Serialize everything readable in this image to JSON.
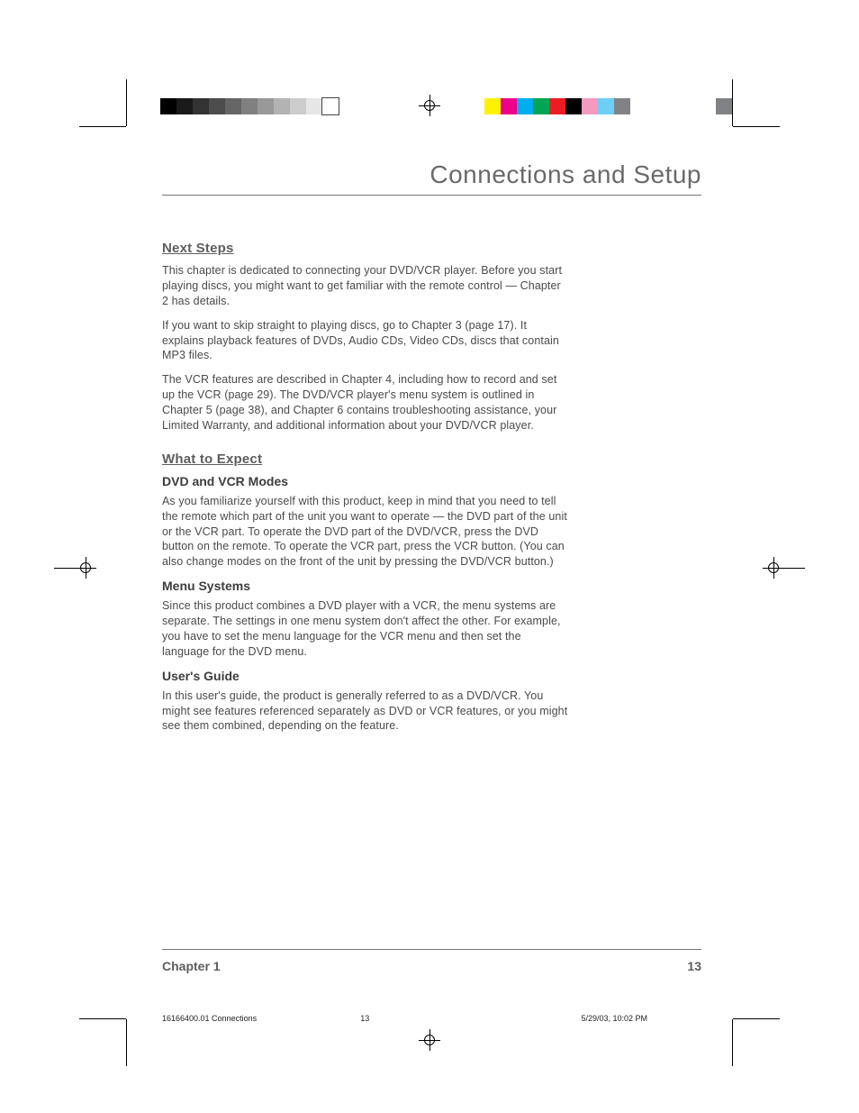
{
  "crop_marks": {
    "color": "#000000"
  },
  "registration_marks": {
    "positions": [
      "top",
      "bottom",
      "left",
      "right"
    ]
  },
  "color_bars": {
    "left_grayscale": [
      "#000000",
      "#1a1a1a",
      "#333333",
      "#4d4d4d",
      "#666666",
      "#808080",
      "#999999",
      "#b3b3b3",
      "#cccccc",
      "#e6e6e6",
      "#ffffff"
    ],
    "right_process": [
      "#fff200",
      "#ec008c",
      "#00aeef",
      "#00a651",
      "#ed1c24",
      "#000000",
      "#f49ac1",
      "#6dcff6",
      "#808285"
    ],
    "extra_swatch": "#808285"
  },
  "header": {
    "title": "Connections and Setup",
    "title_color": "#6a6a6a",
    "title_fontsize": 28,
    "rule_color": "#777777"
  },
  "sections": [
    {
      "heading": "Next Steps",
      "heading_color": "#5d5d5d",
      "paragraphs": [
        "This chapter is dedicated to connecting your DVD/VCR player. Before you start playing discs, you might want to get familiar with the remote control — Chapter 2 has details.",
        "If you want to skip straight to playing discs, go to Chapter 3 (page 17). It explains playback features of DVDs, Audio CDs, Video CDs, discs that contain MP3 files.",
        "The VCR features are described in Chapter 4, including how to record and set up the VCR (page 29). The DVD/VCR player's menu system is outlined in Chapter 5 (page 38), and Chapter 6 contains troubleshooting assistance, your Limited Warranty, and additional information about your DVD/VCR player."
      ]
    },
    {
      "heading": "What to Expect",
      "heading_color": "#5d5d5d",
      "subsections": [
        {
          "subheading": "DVD and VCR Modes",
          "text": "As you familiarize yourself with this product, keep in mind that you need to tell the remote which part of the unit you want to operate — the DVD part of the unit or the VCR part. To operate the DVD part of the DVD/VCR, press the DVD button on the remote. To operate the VCR part, press the VCR button. (You can also change modes on the front of the unit by pressing the DVD/VCR button.)"
        },
        {
          "subheading": "Menu Systems",
          "text": "Since this product combines a DVD player with a VCR, the menu systems are separate. The settings in one menu system don't affect the other. For example, you have to set the menu language for the VCR menu and then set the language for the DVD menu."
        },
        {
          "subheading": "User's Guide",
          "text": "In this user's guide, the product is generally referred to as a DVD/VCR. You might see features referenced separately as DVD or VCR features, or you might see them combined, depending on the feature."
        }
      ]
    }
  ],
  "body_text_color": "#4a4a4a",
  "subheading_color": "#3d3d3d",
  "footer": {
    "chapter_label": "Chapter 1",
    "page_number": "13",
    "color": "#5d5d5d"
  },
  "print_meta": {
    "job": "16166400.01 Connections",
    "page": "13",
    "timestamp": "5/29/03, 10:02 PM"
  }
}
